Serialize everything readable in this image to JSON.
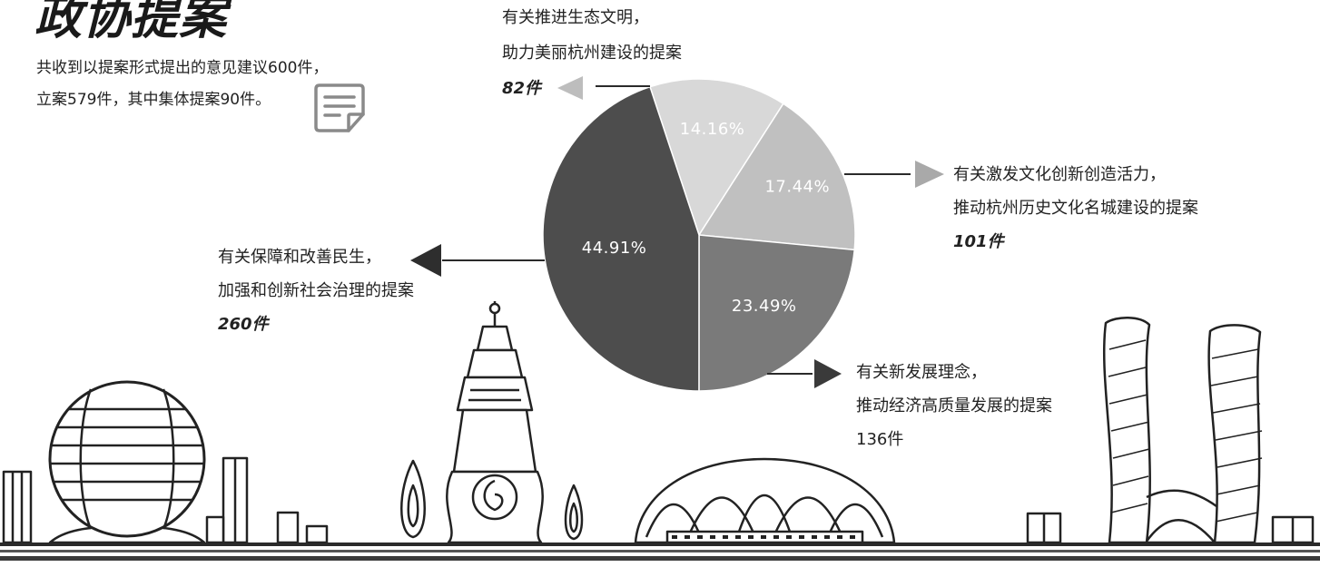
{
  "header": {
    "icon": "document-edit-icon"
  },
  "chart_data": {
    "type": "pie",
    "title": "政协提案",
    "subtitle": [
      "共收到以提案形式提出的意见建议600件，",
      "立案579件，其中集体提案90件。"
    ],
    "slices": [
      {
        "value": 14.16,
        "percent_label": "14.16%",
        "label_lines": [
          "有关推进生态文明，",
          "助力美丽杭州建设的提案"
        ],
        "count": "82件",
        "color": "#d8d8d8",
        "arrow_color": "#bdbdbd"
      },
      {
        "value": 17.44,
        "percent_label": "17.44%",
        "label_lines": [
          "有关激发文化创新创造活力，",
          "推动杭州历史文化名城建设的提案"
        ],
        "count": "101件",
        "color": "#c0c0c0",
        "arrow_color": "#a9a9a9"
      },
      {
        "value": 23.49,
        "percent_label": "23.49%",
        "label_lines": [
          "有关新发展理念，",
          "推动经济高质量发展的提案"
        ],
        "count": "136件",
        "color": "#7a7a7a",
        "arrow_color": "#3a3a3a"
      },
      {
        "value": 44.91,
        "percent_label": "44.91%",
        "label_lines": [
          "有关保障和改善民生，",
          "加强和创新社会治理的提案"
        ],
        "count": "260件",
        "color": "#4d4d4d",
        "arrow_color": "#2e2e2e"
      }
    ]
  }
}
